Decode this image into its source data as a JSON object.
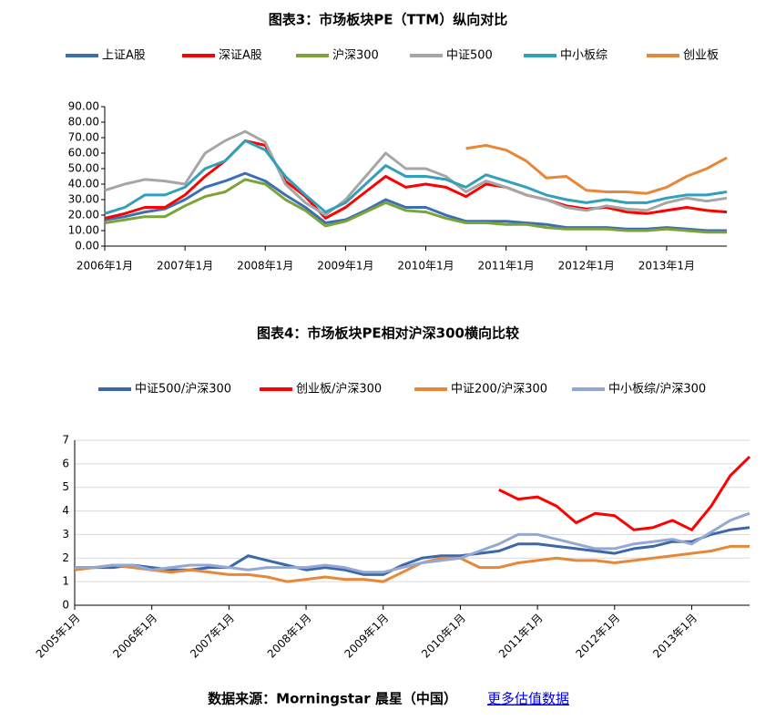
{
  "chart_data": [
    {
      "type": "line",
      "title": "图表3：市场板块PE（TTM）纵向对比",
      "x": [
        "2006-01",
        "2006-04",
        "2006-07",
        "2006-10",
        "2007-01",
        "2007-04",
        "2007-07",
        "2007-10",
        "2008-01",
        "2008-04",
        "2008-07",
        "2008-10",
        "2009-01",
        "2009-04",
        "2009-07",
        "2009-10",
        "2010-01",
        "2010-04",
        "2010-07",
        "2010-10",
        "2011-01",
        "2011-04",
        "2011-07",
        "2011-10",
        "2012-01",
        "2012-04",
        "2012-07",
        "2012-10",
        "2013-01",
        "2013-04",
        "2013-07",
        "2013-10"
      ],
      "series": [
        {
          "name": "上证A股",
          "color": "#3c6eb4",
          "values": [
            17,
            19,
            22,
            24,
            30,
            38,
            42,
            47,
            42,
            33,
            25,
            15,
            17,
            23,
            30,
            25,
            25,
            20,
            16,
            16,
            16,
            15,
            14,
            12,
            12,
            12,
            11,
            11,
            12,
            11,
            10,
            10
          ]
        },
        {
          "name": "深证A股",
          "color": "#ff0000",
          "values": [
            18,
            21,
            25,
            25,
            33,
            45,
            55,
            68,
            65,
            42,
            32,
            18,
            25,
            35,
            45,
            38,
            40,
            38,
            32,
            40,
            38,
            33,
            30,
            26,
            24,
            25,
            22,
            21,
            23,
            25,
            23,
            22
          ]
        },
        {
          "name": "沪深300",
          "color": "#7ba33a",
          "values": [
            15,
            17,
            19,
            19,
            26,
            32,
            35,
            43,
            40,
            30,
            23,
            13,
            16,
            22,
            28,
            23,
            22,
            18,
            15,
            15,
            14,
            14,
            12,
            11,
            11,
            11,
            10,
            10,
            11,
            10,
            9,
            9
          ]
        },
        {
          "name": "中证500",
          "color": "#a6a6a6",
          "values": [
            36,
            40,
            43,
            42,
            40,
            60,
            68,
            74,
            67,
            40,
            28,
            20,
            30,
            45,
            60,
            50,
            50,
            45,
            35,
            42,
            38,
            33,
            30,
            25,
            23,
            26,
            24,
            23,
            28,
            31,
            29,
            31
          ]
        },
        {
          "name": "中小板综",
          "color": "#31a0b9",
          "values": [
            21,
            25,
            33,
            33,
            38,
            50,
            55,
            68,
            62,
            45,
            33,
            22,
            28,
            40,
            52,
            45,
            45,
            43,
            38,
            46,
            42,
            38,
            33,
            30,
            28,
            30,
            28,
            28,
            31,
            33,
            33,
            35
          ]
        },
        {
          "name": "创业板",
          "color": "#e5883a",
          "values": [
            null,
            null,
            null,
            null,
            null,
            null,
            null,
            null,
            null,
            null,
            null,
            null,
            null,
            null,
            null,
            null,
            null,
            null,
            63,
            65,
            62,
            55,
            44,
            45,
            36,
            35,
            35,
            34,
            38,
            45,
            50,
            57
          ]
        }
      ],
      "xlim": [
        "2006-01",
        "2013-10"
      ],
      "xticks": [
        {
          "value": "2006-01",
          "label": "2006年1月"
        },
        {
          "value": "2007-01",
          "label": "2007年1月"
        },
        {
          "value": "2008-01",
          "label": "2008年1月"
        },
        {
          "value": "2009-01",
          "label": "2009年1月"
        },
        {
          "value": "2010-01",
          "label": "2010年1月"
        },
        {
          "value": "2011-01",
          "label": "2011年1月"
        },
        {
          "value": "2012-01",
          "label": "2012年1月"
        },
        {
          "value": "2013-01",
          "label": "2013年1月"
        }
      ],
      "ylim": [
        0,
        90
      ],
      "yticks": [
        {
          "value": 0,
          "label": "0.00"
        },
        {
          "value": 10,
          "label": "10.00"
        },
        {
          "value": 20,
          "label": "20.00"
        },
        {
          "value": 30,
          "label": "30.00"
        },
        {
          "value": 40,
          "label": "40.00"
        },
        {
          "value": 50,
          "label": "50.00"
        },
        {
          "value": 60,
          "label": "60.00"
        },
        {
          "value": 70,
          "label": "70.00"
        },
        {
          "value": 80,
          "label": "80.00"
        },
        {
          "value": 90,
          "label": "90.00"
        }
      ],
      "grid": false,
      "legend": "top"
    },
    {
      "type": "line",
      "title": "图表4：市场板块PE相对沪深300横向比较",
      "x": [
        "2005-01",
        "2005-04",
        "2005-07",
        "2005-10",
        "2006-01",
        "2006-04",
        "2006-07",
        "2006-10",
        "2007-01",
        "2007-04",
        "2007-07",
        "2007-10",
        "2008-01",
        "2008-04",
        "2008-07",
        "2008-10",
        "2009-01",
        "2009-04",
        "2009-07",
        "2009-10",
        "2010-01",
        "2010-04",
        "2010-07",
        "2010-10",
        "2011-01",
        "2011-04",
        "2011-07",
        "2011-10",
        "2012-01",
        "2012-04",
        "2012-07",
        "2012-10",
        "2013-01",
        "2013-04",
        "2013-07",
        "2013-10"
      ],
      "series": [
        {
          "name": "中证500/沪深300",
          "color": "#3c68a8",
          "values": [
            1.6,
            1.6,
            1.6,
            1.7,
            1.6,
            1.5,
            1.5,
            1.6,
            1.6,
            2.1,
            1.9,
            1.7,
            1.5,
            1.6,
            1.5,
            1.3,
            1.3,
            1.7,
            2.0,
            2.1,
            2.1,
            2.2,
            2.3,
            2.6,
            2.6,
            2.5,
            2.4,
            2.3,
            2.2,
            2.4,
            2.5,
            2.7,
            2.7,
            3.0,
            3.2,
            3.3
          ]
        },
        {
          "name": "创业板/沪深300",
          "color": "#ff0000",
          "values": [
            null,
            null,
            null,
            null,
            null,
            null,
            null,
            null,
            null,
            null,
            null,
            null,
            null,
            null,
            null,
            null,
            null,
            null,
            null,
            null,
            null,
            null,
            4.9,
            4.5,
            4.6,
            4.2,
            3.5,
            3.9,
            3.8,
            3.2,
            3.3,
            3.6,
            3.2,
            4.2,
            5.5,
            6.3
          ]
        },
        {
          "name": "中证200/沪深300",
          "color": "#e5883a",
          "values": [
            1.5,
            1.6,
            1.7,
            1.6,
            1.5,
            1.4,
            1.5,
            1.4,
            1.3,
            1.3,
            1.2,
            1.0,
            1.1,
            1.2,
            1.1,
            1.1,
            1.0,
            1.4,
            1.8,
            2.0,
            2.0,
            1.6,
            1.6,
            1.8,
            1.9,
            2.0,
            1.9,
            1.9,
            1.8,
            1.9,
            2.0,
            2.1,
            2.2,
            2.3,
            2.5,
            2.5
          ]
        },
        {
          "name": "中小板综/沪深300",
          "color": "#94a8d4",
          "values": [
            1.6,
            1.6,
            1.7,
            1.7,
            1.5,
            1.6,
            1.7,
            1.7,
            1.6,
            1.5,
            1.6,
            1.6,
            1.6,
            1.7,
            1.6,
            1.4,
            1.4,
            1.6,
            1.8,
            1.9,
            2.0,
            2.3,
            2.6,
            3.0,
            3.0,
            2.8,
            2.6,
            2.4,
            2.4,
            2.6,
            2.7,
            2.8,
            2.6,
            3.1,
            3.6,
            3.9
          ]
        }
      ],
      "xlim": [
        "2005-01",
        "2013-10"
      ],
      "xticks": [
        {
          "value": "2005-01",
          "label": "2005年1月"
        },
        {
          "value": "2006-01",
          "label": "2006年1月"
        },
        {
          "value": "2007-01",
          "label": "2007年1月"
        },
        {
          "value": "2008-01",
          "label": "2008年1月"
        },
        {
          "value": "2009-01",
          "label": "2009年1月"
        },
        {
          "value": "2010-01",
          "label": "2010年1月"
        },
        {
          "value": "2011-01",
          "label": "2011年1月"
        },
        {
          "value": "2012-01",
          "label": "2012年1月"
        },
        {
          "value": "2013-01",
          "label": "2013年1月"
        }
      ],
      "ylim": [
        0,
        7
      ],
      "yticks": [
        0,
        1,
        2,
        3,
        4,
        5,
        6,
        7
      ],
      "grid": true,
      "legend": "top"
    }
  ],
  "footer": {
    "source": "数据来源：Morningstar 晨星（中国）",
    "link": "更多估值数据"
  }
}
